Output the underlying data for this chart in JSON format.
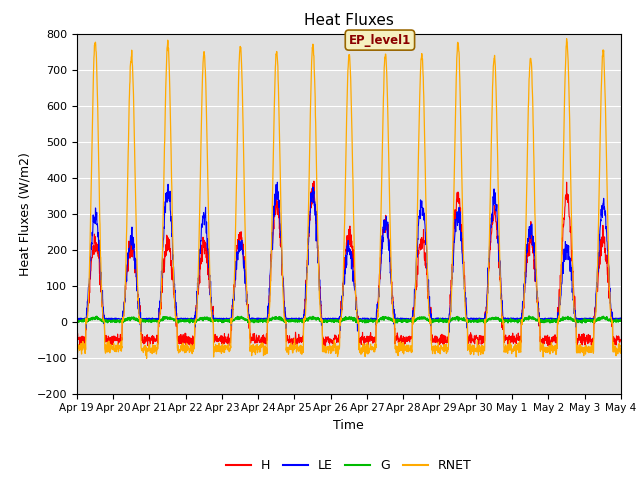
{
  "title": "Heat Fluxes",
  "xlabel": "Time",
  "ylabel": "Heat Fluxes (W/m2)",
  "ylim": [
    -200,
    800
  ],
  "yticks": [
    -200,
    -100,
    0,
    100,
    200,
    300,
    400,
    500,
    600,
    700,
    800
  ],
  "annotation": "EP_level1",
  "legend_labels": [
    "H",
    "LE",
    "G",
    "RNET"
  ],
  "legend_colors": [
    "#ff0000",
    "#0000ff",
    "#00bb00",
    "#ffaa00"
  ],
  "colors": {
    "H": "#ff0000",
    "LE": "#0000ff",
    "G": "#00bb00",
    "RNET": "#ffaa00"
  },
  "background_color": "#e0e0e0",
  "n_days": 15,
  "xtick_labels": [
    "Apr 19",
    "Apr 20",
    "Apr 21",
    "Apr 22",
    "Apr 23",
    "Apr 24",
    "Apr 25",
    "Apr 26",
    "Apr 27",
    "Apr 28",
    "Apr 29",
    "Apr 30",
    "May 1",
    "May 2",
    "May 3",
    "May 4"
  ],
  "points_per_day": 144
}
